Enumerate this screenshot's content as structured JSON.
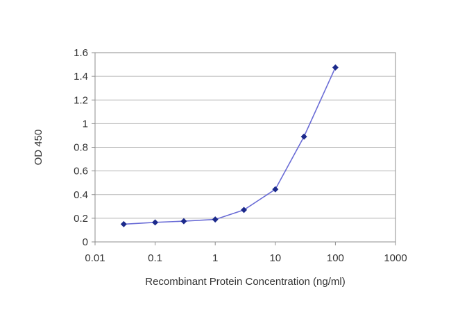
{
  "chart_data": {
    "type": "line",
    "title": "",
    "xlabel": "Recombinant Protein Concentration (ng/ml)",
    "ylabel": "OD 450",
    "x_scale": "log",
    "xlim": [
      0.01,
      1000
    ],
    "ylim": [
      0,
      1.6
    ],
    "x_ticks": [
      "0.01",
      "0.1",
      "1",
      "10",
      "100",
      "1000"
    ],
    "y_ticks": [
      "0",
      "0.2",
      "0.4",
      "0.6",
      "0.8",
      "1",
      "1.2",
      "1.4",
      "1.6"
    ],
    "grid": "horizontal",
    "legend": "none",
    "series": [
      {
        "x": [
          0.03,
          0.1,
          0.3,
          1,
          3,
          10,
          30,
          100
        ],
        "y": [
          0.15,
          0.165,
          0.175,
          0.19,
          0.27,
          0.445,
          0.89,
          1.475
        ]
      }
    ],
    "colors": {
      "line": "#6a6cd6",
      "marker": "#1c2a8c",
      "grid": "#b5b5b5",
      "axis": "#8c8c8c"
    }
  }
}
